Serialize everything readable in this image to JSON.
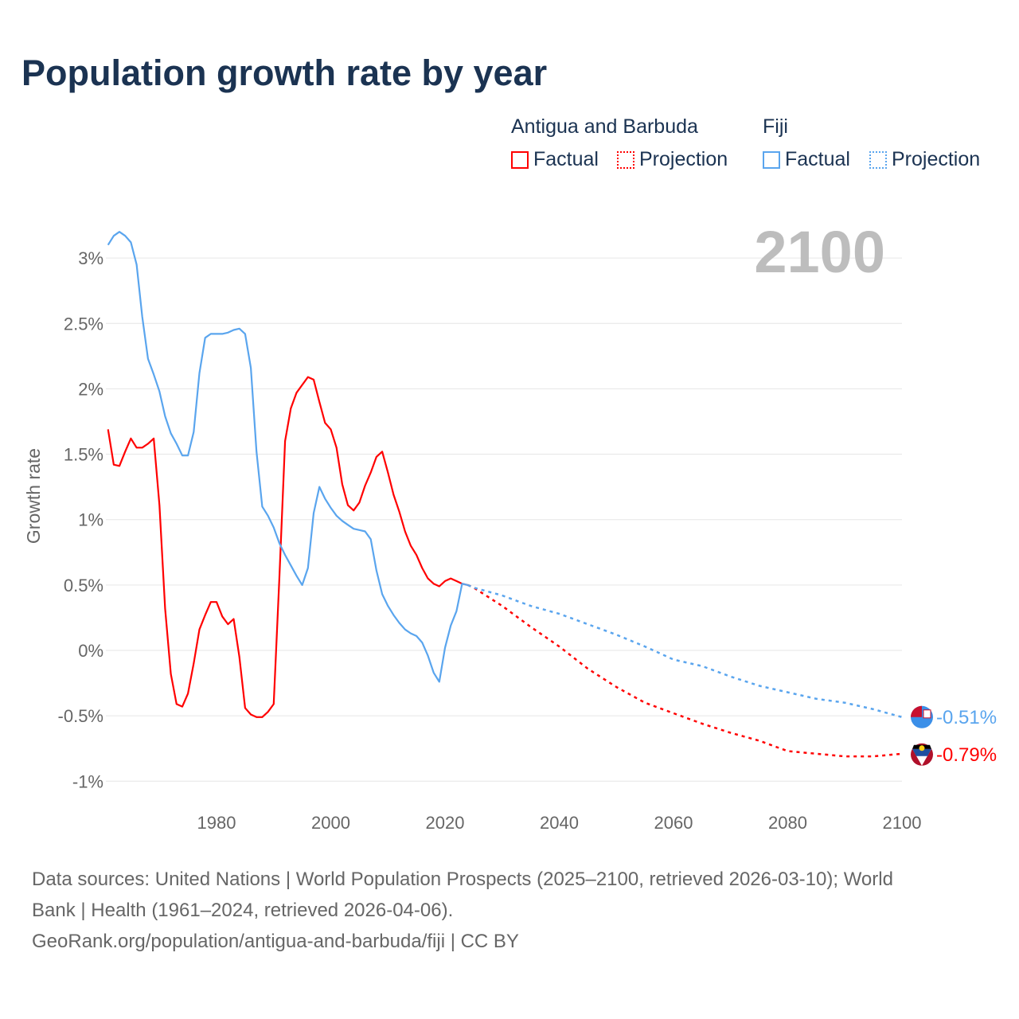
{
  "title": "Population growth rate by year",
  "legend": {
    "groups": [
      {
        "name": "Antigua and Barbuda",
        "factual": "Factual",
        "projection": "Projection",
        "color": "#ff0000"
      },
      {
        "name": "Fiji",
        "factual": "Factual",
        "projection": "Projection",
        "color": "#5aa5ee"
      }
    ]
  },
  "chart_data": {
    "type": "line",
    "title": "Population growth rate by year",
    "ylabel": "Growth rate",
    "xlabel": "",
    "xlim": [
      1961,
      2100
    ],
    "ylim": [
      -1.15,
      3.3
    ],
    "x_ticks": [
      1980,
      2000,
      2020,
      2040,
      2060,
      2080,
      2100
    ],
    "y_ticks": [
      3,
      2.5,
      2,
      1.5,
      1,
      0.5,
      0,
      -0.5,
      -1
    ],
    "y_tick_labels": [
      "3%",
      "2.5%",
      "2%",
      "1.5%",
      "1%",
      "0.5%",
      "0%",
      "-0.5%",
      "-1%"
    ],
    "year_overlay": "2100",
    "grid": true,
    "series": [
      {
        "name": "Antigua and Barbuda",
        "kind": "Factual",
        "color": "#ff0000",
        "dashed": false,
        "x": [
          1961,
          1962,
          1963,
          1964,
          1965,
          1966,
          1967,
          1968,
          1969,
          1970,
          1971,
          1972,
          1973,
          1974,
          1975,
          1976,
          1977,
          1978,
          1979,
          1980,
          1981,
          1982,
          1983,
          1984,
          1985,
          1986,
          1987,
          1988,
          1989,
          1990,
          1991,
          1992,
          1993,
          1994,
          1995,
          1996,
          1997,
          1998,
          1999,
          2000,
          2001,
          2002,
          2003,
          2004,
          2005,
          2006,
          2007,
          2008,
          2009,
          2010,
          2011,
          2012,
          2013,
          2014,
          2015,
          2016,
          2017,
          2018,
          2019,
          2020,
          2021,
          2022,
          2023,
          2024
        ],
        "y": [
          1.69,
          1.42,
          1.41,
          1.52,
          1.62,
          1.55,
          1.55,
          1.58,
          1.62,
          1.11,
          0.32,
          -0.18,
          -0.41,
          -0.43,
          -0.33,
          -0.1,
          0.16,
          0.27,
          0.37,
          0.37,
          0.26,
          0.2,
          0.24,
          -0.05,
          -0.44,
          -0.49,
          -0.51,
          -0.51,
          -0.47,
          -0.41,
          0.55,
          1.6,
          1.85,
          1.97,
          2.03,
          2.09,
          2.07,
          1.9,
          1.74,
          1.69,
          1.55,
          1.27,
          1.11,
          1.07,
          1.13,
          1.26,
          1.36,
          1.48,
          1.52,
          1.36,
          1.19,
          1.06,
          0.91,
          0.8,
          0.73,
          0.63,
          0.55,
          0.51,
          0.49,
          0.53,
          0.55,
          0.53,
          0.51,
          0.5
        ]
      },
      {
        "name": "Antigua and Barbuda",
        "kind": "Projection",
        "color": "#ff0000",
        "dashed": true,
        "x": [
          2024,
          2025,
          2030,
          2035,
          2040,
          2045,
          2050,
          2055,
          2060,
          2065,
          2070,
          2075,
          2080,
          2085,
          2090,
          2095,
          2100
        ],
        "y": [
          0.5,
          0.48,
          0.34,
          0.18,
          0.03,
          -0.14,
          -0.28,
          -0.4,
          -0.48,
          -0.56,
          -0.63,
          -0.69,
          -0.77,
          -0.79,
          -0.81,
          -0.81,
          -0.79
        ]
      },
      {
        "name": "Fiji",
        "kind": "Factual",
        "color": "#5aa5ee",
        "dashed": false,
        "x": [
          1961,
          1962,
          1963,
          1964,
          1965,
          1966,
          1967,
          1968,
          1969,
          1970,
          1971,
          1972,
          1973,
          1974,
          1975,
          1976,
          1977,
          1978,
          1979,
          1980,
          1981,
          1982,
          1983,
          1984,
          1985,
          1986,
          1987,
          1988,
          1989,
          1990,
          1991,
          1992,
          1993,
          1994,
          1995,
          1996,
          1997,
          1998,
          1999,
          2000,
          2001,
          2002,
          2003,
          2004,
          2005,
          2006,
          2007,
          2008,
          2009,
          2010,
          2011,
          2012,
          2013,
          2014,
          2015,
          2016,
          2017,
          2018,
          2019,
          2020,
          2021,
          2022,
          2023,
          2024
        ],
        "y": [
          3.1,
          3.17,
          3.2,
          3.17,
          3.12,
          2.95,
          2.55,
          2.23,
          2.11,
          1.98,
          1.79,
          1.66,
          1.58,
          1.49,
          1.49,
          1.67,
          2.12,
          2.39,
          2.42,
          2.42,
          2.42,
          2.43,
          2.45,
          2.46,
          2.42,
          2.16,
          1.52,
          1.1,
          1.03,
          0.94,
          0.82,
          0.73,
          0.65,
          0.57,
          0.5,
          0.63,
          1.05,
          1.25,
          1.16,
          1.09,
          1.03,
          0.99,
          0.96,
          0.93,
          0.92,
          0.91,
          0.85,
          0.61,
          0.43,
          0.34,
          0.27,
          0.21,
          0.16,
          0.13,
          0.11,
          0.06,
          -0.04,
          -0.17,
          -0.24,
          0.02,
          0.19,
          0.3,
          0.51,
          0.5
        ]
      },
      {
        "name": "Fiji",
        "kind": "Projection",
        "color": "#5aa5ee",
        "dashed": true,
        "x": [
          2024,
          2025,
          2030,
          2035,
          2040,
          2045,
          2050,
          2055,
          2060,
          2065,
          2070,
          2075,
          2080,
          2085,
          2090,
          2095,
          2100
        ],
        "y": [
          0.5,
          0.48,
          0.42,
          0.34,
          0.28,
          0.2,
          0.12,
          0.03,
          -0.07,
          -0.12,
          -0.2,
          -0.27,
          -0.32,
          -0.37,
          -0.4,
          -0.45,
          -0.51
        ]
      }
    ],
    "end_labels": [
      {
        "country": "Fiji",
        "value": -0.51,
        "text": "-0.51%",
        "color": "#5aa5ee"
      },
      {
        "country": "Antigua and Barbuda",
        "value": -0.79,
        "text": "-0.79%",
        "color": "#ff0000"
      }
    ]
  },
  "footer": {
    "line1": "Data sources: United Nations | World Population Prospects (2025–2100, retrieved 2026-03-10); World",
    "line2": "Bank | Health (1961–2024, retrieved 2026-04-06).",
    "line3": "GeoRank.org/population/antigua-and-barbuda/fiji | CC BY"
  }
}
